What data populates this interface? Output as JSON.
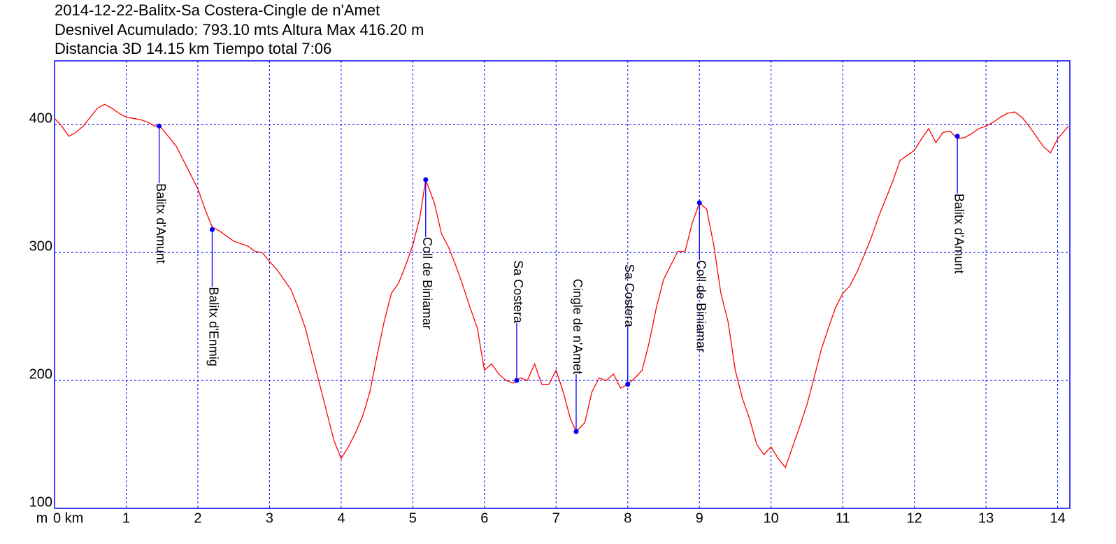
{
  "chart_data": {
    "type": "line",
    "title_lines": [
      "2014-12-22-Balitx-Sa Costera-Cingle de n'Amet",
      "Desnivel Acumulado: 793.10 mts  Altura Max 416.20 m",
      "Distancia 3D 14.15 km  Tiempo total 7:06"
    ],
    "y_label": "m",
    "x": [
      0,
      0.1,
      0.2,
      0.3,
      0.4,
      0.5,
      0.6,
      0.7,
      0.8,
      0.9,
      1.0,
      1.1,
      1.2,
      1.3,
      1.4,
      1.46,
      1.5,
      1.6,
      1.7,
      1.8,
      1.9,
      2.0,
      2.1,
      2.2,
      2.3,
      2.4,
      2.5,
      2.6,
      2.7,
      2.8,
      2.9,
      3.0,
      3.1,
      3.2,
      3.3,
      3.4,
      3.5,
      3.6,
      3.7,
      3.8,
      3.9,
      4.0,
      4.1,
      4.2,
      4.3,
      4.4,
      4.5,
      4.6,
      4.7,
      4.8,
      4.9,
      5.0,
      5.1,
      5.18,
      5.3,
      5.4,
      5.5,
      5.6,
      5.7,
      5.8,
      5.9,
      6.0,
      6.1,
      6.2,
      6.3,
      6.4,
      6.45,
      6.5,
      6.6,
      6.7,
      6.8,
      6.9,
      7.0,
      7.1,
      7.2,
      7.28,
      7.4,
      7.5,
      7.6,
      7.7,
      7.8,
      7.9,
      8.0,
      8.1,
      8.2,
      8.3,
      8.4,
      8.5,
      8.6,
      8.7,
      8.8,
      8.9,
      9.0,
      9.1,
      9.2,
      9.3,
      9.4,
      9.5,
      9.6,
      9.7,
      9.8,
      9.9,
      10.0,
      10.1,
      10.2,
      10.3,
      10.4,
      10.5,
      10.6,
      10.7,
      10.8,
      10.9,
      11.0,
      11.1,
      11.2,
      11.3,
      11.4,
      11.5,
      11.6,
      11.7,
      11.8,
      11.9,
      12.0,
      12.1,
      12.2,
      12.3,
      12.4,
      12.5,
      12.6,
      12.7,
      12.8,
      12.9,
      13.0,
      13.1,
      13.2,
      13.3,
      13.4,
      13.5,
      13.6,
      13.7,
      13.8,
      13.9,
      14.0,
      14.15
    ],
    "series": [
      {
        "color": "#ff0000",
        "values": [
          405,
          399,
          391,
          394,
          399,
          406,
          413,
          416,
          413,
          409,
          406,
          405,
          404,
          402,
          399,
          399,
          397,
          390,
          383,
          372,
          361,
          350,
          334,
          320,
          317,
          313,
          309,
          307,
          305,
          301,
          300,
          293,
          287,
          279,
          271,
          257,
          241,
          219,
          197,
          175,
          153,
          139,
          148,
          159,
          172,
          191,
          219,
          246,
          268,
          276,
          290,
          306,
          328,
          357,
          339,
          315,
          304,
          290,
          274,
          257,
          241,
          208,
          213,
          205,
          200,
          198,
          200,
          202,
          200,
          213,
          197,
          197,
          208,
          191,
          170,
          160,
          167,
          191,
          202,
          200,
          205,
          194,
          197,
          202,
          208,
          230,
          257,
          279,
          290,
          301,
          301,
          323,
          339,
          334,
          306,
          268,
          246,
          208,
          186,
          170,
          150,
          142,
          148,
          139,
          132,
          148,
          164,
          181,
          202,
          224,
          241,
          257,
          268,
          274,
          285,
          298,
          312,
          328,
          342,
          356,
          372,
          376,
          380,
          389,
          397,
          386,
          394,
          395,
          389,
          390,
          393,
          397,
          399,
          402,
          406,
          409,
          410,
          406,
          399,
          391,
          383,
          378,
          389,
          399
        ]
      }
    ],
    "waypoints": {
      "color": "#0000ff",
      "labels": [
        "Balitx d'Amunt",
        "Balitx d'Enmig",
        "Coll de Biniamar",
        "Sa Costera",
        "Cingle de n'Amet",
        "Sa Costera",
        "Coll de Biniamar",
        "Balitx d'Amunt"
      ],
      "x": [
        1.46,
        2.2,
        5.18,
        6.45,
        7.28,
        8.0,
        9.0,
        12.6
      ],
      "values": [
        399,
        318,
        357,
        200,
        160,
        197,
        339,
        391
      ]
    },
    "xlim": [
      0,
      14.17
    ],
    "ylim": [
      100,
      450
    ],
    "xticks": [
      {
        "value": 0,
        "label": "0 km"
      },
      1,
      2,
      3,
      4,
      5,
      6,
      7,
      8,
      9,
      10,
      11,
      12,
      13,
      14
    ],
    "yticks": [
      100,
      200,
      300,
      400
    ],
    "grid": true,
    "grid_color": "#0000ff",
    "frame_color": "#0000ff"
  }
}
